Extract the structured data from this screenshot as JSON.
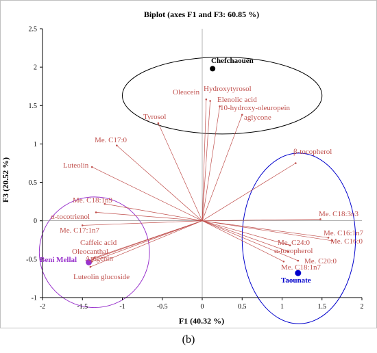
{
  "figure_label": "(b)",
  "chart_data": {
    "type": "scatter",
    "title": "Biplot (axes F1 and F3: 60.85 %)",
    "xlabel": "F1 (40.32 %)",
    "ylabel": "F3 (20.52 %)",
    "xlim": [
      -2,
      2
    ],
    "ylim": [
      -1,
      2.5
    ],
    "x_ticks": [
      "-2",
      "-1.5",
      "-1",
      "-0.5",
      "0",
      "0.5",
      "1",
      "1.5",
      "2"
    ],
    "y_ticks": [
      "-1",
      "-0.5",
      "0",
      "0.5",
      "1",
      "1.5",
      "2",
      "2.5"
    ],
    "grid": false,
    "colors": {
      "variables": "#c0504d",
      "labels": "#c0504d",
      "chefchaouen": "#000000",
      "taounate": "#0000cc",
      "beni_mellal": "#9933cc"
    },
    "variables": [
      {
        "name": "Oleacein",
        "x": 0.05,
        "y": 1.58
      },
      {
        "name": "Hydroxytyrosol",
        "x": 0.1,
        "y": 1.56
      },
      {
        "name": "Elenolic acid",
        "x": 0.22,
        "y": 1.49
      },
      {
        "name": "10-hydroxy-oleuropein",
        "x": 0.5,
        "y": 1.38
      },
      {
        "name": "aglycone",
        "x": null,
        "y": null
      },
      {
        "name": "Tyrosol",
        "x": -0.55,
        "y": 1.27
      },
      {
        "name": "Me. C17:0",
        "x": -1.07,
        "y": 0.98
      },
      {
        "name": "Luteolin",
        "x": -1.38,
        "y": 0.7
      },
      {
        "name": "β-tocopherol",
        "x": 1.17,
        "y": 0.75
      },
      {
        "name": "Me. C18:1n9",
        "x": -1.22,
        "y": 0.22
      },
      {
        "name": "α-tocotrienol",
        "x": -1.33,
        "y": 0.11
      },
      {
        "name": "Me. C17:1n7",
        "x": -1.5,
        "y": -0.06
      },
      {
        "name": "Me. C18:3n3",
        "x": 1.48,
        "y": 0.02
      },
      {
        "name": "Me. C16:1n7",
        "x": 1.58,
        "y": -0.22
      },
      {
        "name": "Me. C16:0",
        "x": 1.63,
        "y": -0.26
      },
      {
        "name": "Me. C24:0",
        "x": 1.1,
        "y": -0.32
      },
      {
        "name": "α-tocopherol",
        "x": 1.08,
        "y": -0.4
      },
      {
        "name": "Me. C20:0",
        "x": 1.2,
        "y": -0.52
      },
      {
        "name": "Me. C18:1n7",
        "x": 1.02,
        "y": -0.53
      },
      {
        "name": "Caffeic acid",
        "x": -1.35,
        "y": -0.48
      },
      {
        "name": "Oleocanthal",
        "x": -1.37,
        "y": -0.5
      },
      {
        "name": "Apigenin",
        "x": -1.38,
        "y": -0.53
      },
      {
        "name": "Luteolin glucoside",
        "x": -1.4,
        "y": -0.6
      }
    ],
    "observations": [
      {
        "name": "Chefchaouen",
        "x": 0.13,
        "y": 1.98
      },
      {
        "name": "Taounate",
        "x": 1.2,
        "y": -0.68
      },
      {
        "name": "Beni Mellal",
        "x": -1.42,
        "y": -0.54
      }
    ],
    "ellipses": [
      {
        "group": "Chefchaouen",
        "cx": 0.25,
        "cy": 1.63,
        "rx": 1.25,
        "ry": 0.5
      },
      {
        "group": "Taounate",
        "cx": 1.21,
        "cy": -0.23,
        "rx": 0.71,
        "ry": 1.11
      },
      {
        "group": "Beni Mellal",
        "cx": -1.35,
        "cy": -0.41,
        "rx": 0.69,
        "ry": 0.72
      }
    ]
  }
}
